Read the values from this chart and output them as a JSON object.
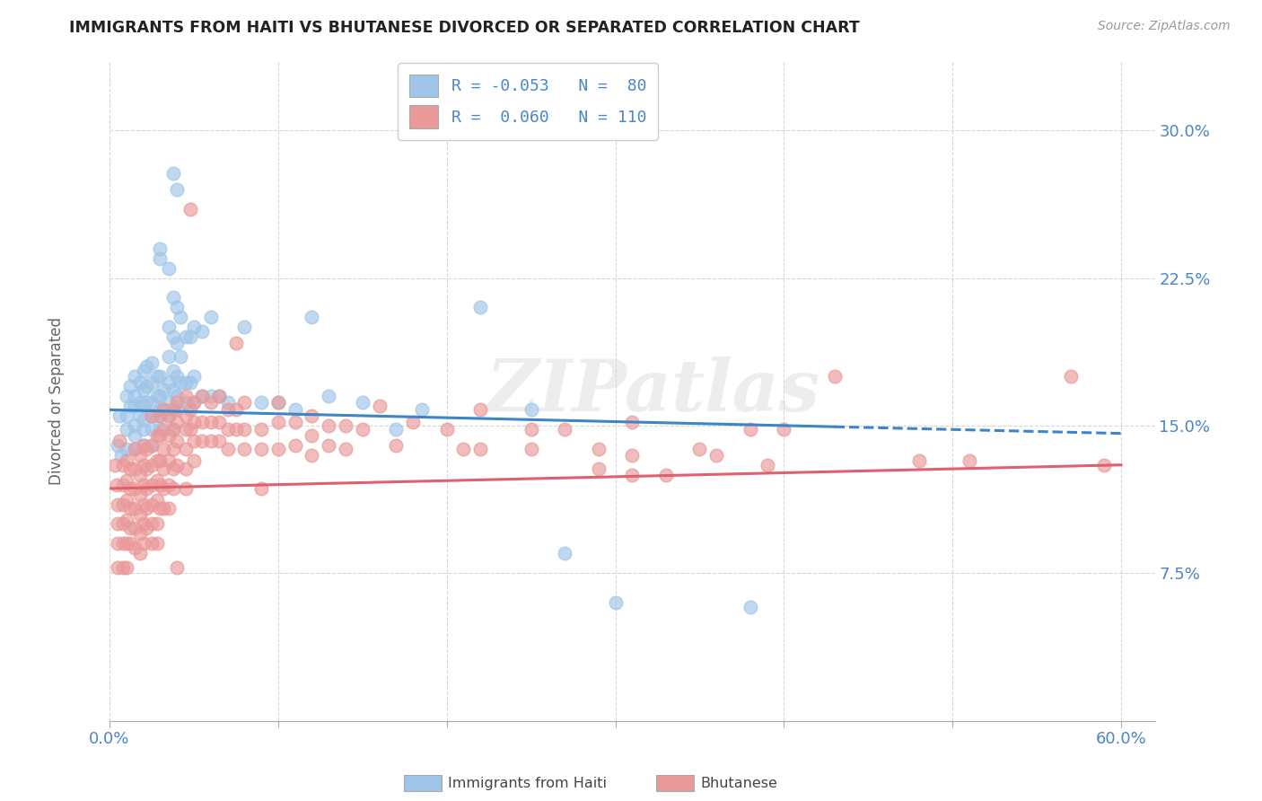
{
  "title": "IMMIGRANTS FROM HAITI VS BHUTANESE DIVORCED OR SEPARATED CORRELATION CHART",
  "source": "Source: ZipAtlas.com",
  "ylabel": "Divorced or Separated",
  "y_ticks": [
    "7.5%",
    "15.0%",
    "22.5%",
    "30.0%"
  ],
  "y_tick_vals": [
    0.075,
    0.15,
    0.225,
    0.3
  ],
  "x_tick_positions": [
    0.0,
    0.1,
    0.2,
    0.3,
    0.4,
    0.5,
    0.6
  ],
  "x_tick_labels": [
    "0.0%",
    "",
    "",
    "",
    "",
    "",
    "60.0%"
  ],
  "xlim": [
    0.0,
    0.62
  ],
  "ylim": [
    0.0,
    0.335
  ],
  "haiti_color": "#9fc5e8",
  "bhutanese_color": "#ea9999",
  "haiti_line_color": "#3d85c8",
  "bhutanese_line_color": "#e06070",
  "haiti_line": {
    "x0": 0.0,
    "y0": 0.158,
    "x1": 0.6,
    "y1": 0.146
  },
  "haiti_line_solid_end": 0.43,
  "bhut_line": {
    "x0": 0.0,
    "y0": 0.118,
    "x1": 0.6,
    "y1": 0.13
  },
  "legend_r1": "R = -0.053",
  "legend_n1": "N =  80",
  "legend_r2": "R =  0.060",
  "legend_n2": "N = 110",
  "legend_label1": "Immigrants from Haiti",
  "legend_label2": "Bhutanese",
  "watermark": "ZIPatlas",
  "haiti_scatter": [
    [
      0.005,
      0.14
    ],
    [
      0.006,
      0.155
    ],
    [
      0.007,
      0.135
    ],
    [
      0.01,
      0.165
    ],
    [
      0.01,
      0.155
    ],
    [
      0.01,
      0.148
    ],
    [
      0.01,
      0.138
    ],
    [
      0.012,
      0.17
    ],
    [
      0.012,
      0.16
    ],
    [
      0.015,
      0.175
    ],
    [
      0.015,
      0.165
    ],
    [
      0.015,
      0.16
    ],
    [
      0.015,
      0.15
    ],
    [
      0.015,
      0.145
    ],
    [
      0.015,
      0.138
    ],
    [
      0.018,
      0.172
    ],
    [
      0.018,
      0.162
    ],
    [
      0.018,
      0.155
    ],
    [
      0.02,
      0.178
    ],
    [
      0.02,
      0.168
    ],
    [
      0.02,
      0.16
    ],
    [
      0.02,
      0.153
    ],
    [
      0.02,
      0.148
    ],
    [
      0.02,
      0.14
    ],
    [
      0.022,
      0.18
    ],
    [
      0.022,
      0.17
    ],
    [
      0.022,
      0.162
    ],
    [
      0.025,
      0.182
    ],
    [
      0.025,
      0.172
    ],
    [
      0.025,
      0.162
    ],
    [
      0.025,
      0.155
    ],
    [
      0.025,
      0.148
    ],
    [
      0.025,
      0.14
    ],
    [
      0.028,
      0.175
    ],
    [
      0.028,
      0.165
    ],
    [
      0.028,
      0.155
    ],
    [
      0.03,
      0.24
    ],
    [
      0.03,
      0.235
    ],
    [
      0.03,
      0.175
    ],
    [
      0.03,
      0.165
    ],
    [
      0.03,
      0.158
    ],
    [
      0.03,
      0.148
    ],
    [
      0.032,
      0.168
    ],
    [
      0.032,
      0.158
    ],
    [
      0.035,
      0.23
    ],
    [
      0.035,
      0.2
    ],
    [
      0.035,
      0.185
    ],
    [
      0.035,
      0.172
    ],
    [
      0.035,
      0.162
    ],
    [
      0.035,
      0.155
    ],
    [
      0.038,
      0.278
    ],
    [
      0.038,
      0.215
    ],
    [
      0.038,
      0.195
    ],
    [
      0.038,
      0.178
    ],
    [
      0.038,
      0.168
    ],
    [
      0.038,
      0.158
    ],
    [
      0.038,
      0.148
    ],
    [
      0.04,
      0.27
    ],
    [
      0.04,
      0.21
    ],
    [
      0.04,
      0.192
    ],
    [
      0.04,
      0.175
    ],
    [
      0.04,
      0.165
    ],
    [
      0.04,
      0.158
    ],
    [
      0.042,
      0.205
    ],
    [
      0.042,
      0.185
    ],
    [
      0.042,
      0.172
    ],
    [
      0.045,
      0.195
    ],
    [
      0.045,
      0.172
    ],
    [
      0.045,
      0.162
    ],
    [
      0.048,
      0.195
    ],
    [
      0.048,
      0.172
    ],
    [
      0.05,
      0.2
    ],
    [
      0.05,
      0.175
    ],
    [
      0.05,
      0.162
    ],
    [
      0.055,
      0.198
    ],
    [
      0.055,
      0.165
    ],
    [
      0.06,
      0.205
    ],
    [
      0.06,
      0.165
    ],
    [
      0.065,
      0.165
    ],
    [
      0.07,
      0.162
    ],
    [
      0.08,
      0.2
    ],
    [
      0.09,
      0.162
    ],
    [
      0.1,
      0.162
    ],
    [
      0.11,
      0.158
    ],
    [
      0.12,
      0.205
    ],
    [
      0.13,
      0.165
    ],
    [
      0.15,
      0.162
    ],
    [
      0.17,
      0.148
    ],
    [
      0.185,
      0.158
    ],
    [
      0.22,
      0.21
    ],
    [
      0.25,
      0.158
    ],
    [
      0.27,
      0.085
    ],
    [
      0.3,
      0.06
    ],
    [
      0.38,
      0.058
    ]
  ],
  "bhutanese_scatter": [
    [
      0.003,
      0.13
    ],
    [
      0.004,
      0.12
    ],
    [
      0.005,
      0.11
    ],
    [
      0.005,
      0.1
    ],
    [
      0.005,
      0.09
    ],
    [
      0.005,
      0.078
    ],
    [
      0.006,
      0.142
    ],
    [
      0.008,
      0.13
    ],
    [
      0.008,
      0.12
    ],
    [
      0.008,
      0.11
    ],
    [
      0.008,
      0.1
    ],
    [
      0.008,
      0.09
    ],
    [
      0.008,
      0.078
    ],
    [
      0.01,
      0.132
    ],
    [
      0.01,
      0.122
    ],
    [
      0.01,
      0.112
    ],
    [
      0.01,
      0.102
    ],
    [
      0.01,
      0.09
    ],
    [
      0.01,
      0.078
    ],
    [
      0.012,
      0.128
    ],
    [
      0.012,
      0.118
    ],
    [
      0.012,
      0.108
    ],
    [
      0.012,
      0.098
    ],
    [
      0.012,
      0.09
    ],
    [
      0.015,
      0.138
    ],
    [
      0.015,
      0.128
    ],
    [
      0.015,
      0.118
    ],
    [
      0.015,
      0.108
    ],
    [
      0.015,
      0.098
    ],
    [
      0.015,
      0.088
    ],
    [
      0.018,
      0.135
    ],
    [
      0.018,
      0.125
    ],
    [
      0.018,
      0.115
    ],
    [
      0.018,
      0.105
    ],
    [
      0.018,
      0.095
    ],
    [
      0.018,
      0.085
    ],
    [
      0.02,
      0.14
    ],
    [
      0.02,
      0.13
    ],
    [
      0.02,
      0.12
    ],
    [
      0.02,
      0.11
    ],
    [
      0.02,
      0.1
    ],
    [
      0.02,
      0.09
    ],
    [
      0.022,
      0.138
    ],
    [
      0.022,
      0.128
    ],
    [
      0.022,
      0.118
    ],
    [
      0.022,
      0.108
    ],
    [
      0.022,
      0.098
    ],
    [
      0.025,
      0.155
    ],
    [
      0.025,
      0.14
    ],
    [
      0.025,
      0.13
    ],
    [
      0.025,
      0.12
    ],
    [
      0.025,
      0.11
    ],
    [
      0.025,
      0.1
    ],
    [
      0.025,
      0.09
    ],
    [
      0.028,
      0.145
    ],
    [
      0.028,
      0.132
    ],
    [
      0.028,
      0.122
    ],
    [
      0.028,
      0.112
    ],
    [
      0.028,
      0.1
    ],
    [
      0.028,
      0.09
    ],
    [
      0.03,
      0.155
    ],
    [
      0.03,
      0.145
    ],
    [
      0.03,
      0.132
    ],
    [
      0.03,
      0.12
    ],
    [
      0.03,
      0.108
    ],
    [
      0.032,
      0.158
    ],
    [
      0.032,
      0.148
    ],
    [
      0.032,
      0.138
    ],
    [
      0.032,
      0.128
    ],
    [
      0.032,
      0.118
    ],
    [
      0.032,
      0.108
    ],
    [
      0.035,
      0.155
    ],
    [
      0.035,
      0.145
    ],
    [
      0.035,
      0.132
    ],
    [
      0.035,
      0.12
    ],
    [
      0.035,
      0.108
    ],
    [
      0.038,
      0.158
    ],
    [
      0.038,
      0.148
    ],
    [
      0.038,
      0.138
    ],
    [
      0.038,
      0.128
    ],
    [
      0.038,
      0.118
    ],
    [
      0.04,
      0.162
    ],
    [
      0.04,
      0.152
    ],
    [
      0.04,
      0.142
    ],
    [
      0.04,
      0.13
    ],
    [
      0.04,
      0.078
    ],
    [
      0.045,
      0.165
    ],
    [
      0.045,
      0.155
    ],
    [
      0.045,
      0.148
    ],
    [
      0.045,
      0.138
    ],
    [
      0.045,
      0.128
    ],
    [
      0.045,
      0.118
    ],
    [
      0.048,
      0.26
    ],
    [
      0.048,
      0.158
    ],
    [
      0.048,
      0.148
    ],
    [
      0.05,
      0.162
    ],
    [
      0.05,
      0.152
    ],
    [
      0.05,
      0.142
    ],
    [
      0.05,
      0.132
    ],
    [
      0.055,
      0.165
    ],
    [
      0.055,
      0.152
    ],
    [
      0.055,
      0.142
    ],
    [
      0.06,
      0.162
    ],
    [
      0.06,
      0.152
    ],
    [
      0.06,
      0.142
    ],
    [
      0.065,
      0.165
    ],
    [
      0.065,
      0.152
    ],
    [
      0.065,
      0.142
    ],
    [
      0.07,
      0.158
    ],
    [
      0.07,
      0.148
    ],
    [
      0.07,
      0.138
    ],
    [
      0.075,
      0.192
    ],
    [
      0.075,
      0.158
    ],
    [
      0.075,
      0.148
    ],
    [
      0.08,
      0.162
    ],
    [
      0.08,
      0.148
    ],
    [
      0.08,
      0.138
    ],
    [
      0.09,
      0.148
    ],
    [
      0.09,
      0.138
    ],
    [
      0.09,
      0.118
    ],
    [
      0.1,
      0.162
    ],
    [
      0.1,
      0.152
    ],
    [
      0.1,
      0.138
    ],
    [
      0.11,
      0.152
    ],
    [
      0.11,
      0.14
    ],
    [
      0.12,
      0.155
    ],
    [
      0.12,
      0.145
    ],
    [
      0.12,
      0.135
    ],
    [
      0.13,
      0.15
    ],
    [
      0.13,
      0.14
    ],
    [
      0.14,
      0.15
    ],
    [
      0.14,
      0.138
    ],
    [
      0.15,
      0.148
    ],
    [
      0.16,
      0.16
    ],
    [
      0.17,
      0.14
    ],
    [
      0.18,
      0.152
    ],
    [
      0.2,
      0.148
    ],
    [
      0.21,
      0.138
    ],
    [
      0.22,
      0.158
    ],
    [
      0.22,
      0.138
    ],
    [
      0.25,
      0.148
    ],
    [
      0.25,
      0.138
    ],
    [
      0.27,
      0.148
    ],
    [
      0.29,
      0.138
    ],
    [
      0.29,
      0.128
    ],
    [
      0.31,
      0.152
    ],
    [
      0.31,
      0.135
    ],
    [
      0.31,
      0.125
    ],
    [
      0.33,
      0.125
    ],
    [
      0.35,
      0.138
    ],
    [
      0.36,
      0.135
    ],
    [
      0.38,
      0.148
    ],
    [
      0.39,
      0.13
    ],
    [
      0.4,
      0.148
    ],
    [
      0.43,
      0.175
    ],
    [
      0.48,
      0.132
    ],
    [
      0.51,
      0.132
    ],
    [
      0.57,
      0.175
    ],
    [
      0.59,
      0.13
    ]
  ]
}
